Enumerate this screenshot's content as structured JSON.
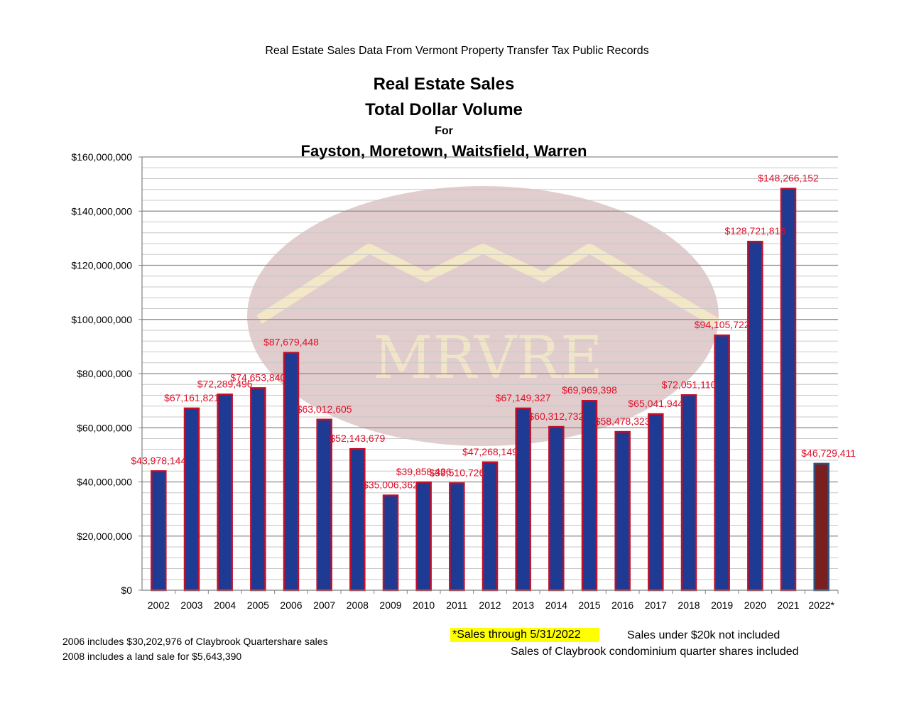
{
  "header": {
    "supertitle": "Real Estate Sales Data From Vermont Property Transfer Tax Public Records",
    "title_line1": "Real Estate Sales",
    "title_line2": "Total Dollar Volume",
    "title_line3": "For",
    "title_line4": "Fayston, Moretown, Waitsfield, Warren"
  },
  "watermark": {
    "text": "MRVRE",
    "color": "#c8a4a4",
    "letter_color": "#f2e8c8"
  },
  "colors": {
    "bar_fill": "#1f3a93",
    "bar_border": "#c0102a",
    "partial_bar_fill": "#7a1f1f",
    "partial_bar_border": "#2e5481",
    "label_color": "#e0102a",
    "grid": "#a6a6a6",
    "highlight": "#ffff00"
  },
  "chart_data": {
    "type": "bar",
    "categories": [
      "2002",
      "2003",
      "2004",
      "2005",
      "2006",
      "2007",
      "2008",
      "2009",
      "2010",
      "2011",
      "2012",
      "2013",
      "2014",
      "2015",
      "2016",
      "2017",
      "2018",
      "2019",
      "2020",
      "2021",
      "2022*"
    ],
    "values": [
      43978144,
      67161821,
      72289496,
      74653840,
      87679448,
      63012605,
      52143679,
      35006362,
      39858436,
      39510726,
      47268149,
      67149327,
      60312732,
      69969398,
      58478323,
      65041944,
      72051110,
      94105722,
      128721816,
      148266152,
      46729411
    ],
    "data_labels": [
      "$43,978,144",
      "$67,161,821",
      "$72,289,496",
      "$74,653,840",
      "$87,679,448",
      "$63,012,605",
      "$52,143,679",
      "$35,006,362",
      "$39,858,436",
      "$39,510,726",
      "$47,268,149",
      "$67,149,327",
      "$60,312,732",
      "$69,969,398",
      "$58,478,323",
      "$65,041,944",
      "$72,051,110",
      "$94,105,722",
      "$128,721,816",
      "$148,266,152",
      "$46,729,411"
    ],
    "partial_index": 20,
    "yticks": [
      "$0",
      "$20,000,000",
      "$40,000,000",
      "$60,000,000",
      "$80,000,000",
      "$100,000,000",
      "$120,000,000",
      "$140,000,000",
      "$160,000,000"
    ],
    "ylim": [
      0,
      160000000
    ],
    "major_step": 20000000,
    "minor_step": 4000000,
    "grid": true,
    "legend": "none"
  },
  "notes": {
    "note1": "2006 includes $30,202,976 of Claybrook Quartershare sales",
    "note2": "2008 includes a land sale for $5,643,390",
    "partial_note": "*Sales through 5/31/2022",
    "note3": "Sales under $20k not included",
    "note4": "Sales of Claybrook condominium quarter shares included"
  }
}
